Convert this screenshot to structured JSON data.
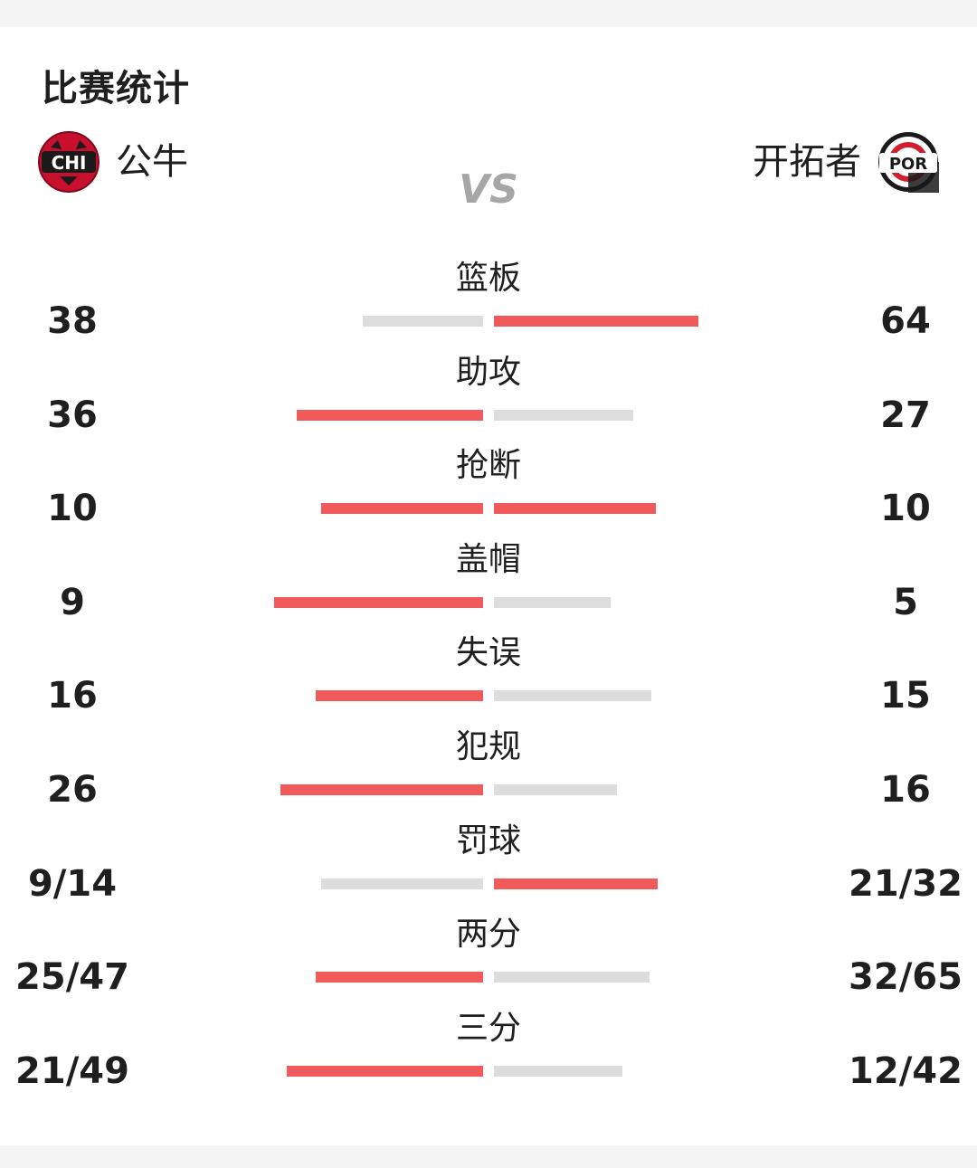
{
  "title": "比赛统计",
  "vs": "VS",
  "home_team": {
    "name": "公牛",
    "abbr": "CHI"
  },
  "away_team": {
    "name": "开拓者",
    "abbr": "POR"
  },
  "colors": {
    "leader": "#f05a5a",
    "trailer": "#dddddd",
    "home_logo": "#c8102e",
    "away_logo": "#d21f2d"
  },
  "stats": [
    {
      "label": "篮板",
      "home": "38",
      "away": "64",
      "home_bar": 0.59,
      "away_bar": 1.0,
      "leader": "away"
    },
    {
      "label": "助攻",
      "home": "36",
      "away": "27",
      "home_bar": 0.91,
      "away_bar": 0.68,
      "leader": "home"
    },
    {
      "label": "抢断",
      "home": "10",
      "away": "10",
      "home_bar": 0.79,
      "away_bar": 0.79,
      "leader": "both"
    },
    {
      "label": "盖帽",
      "home": "9",
      "away": "5",
      "home_bar": 1.02,
      "away_bar": 0.57,
      "leader": "home"
    },
    {
      "label": "失误",
      "home": "16",
      "away": "15",
      "home_bar": 0.82,
      "away_bar": 0.77,
      "leader": "home"
    },
    {
      "label": "犯规",
      "home": "26",
      "away": "16",
      "home_bar": 0.99,
      "away_bar": 0.6,
      "leader": "home"
    },
    {
      "label": "罚球",
      "home": "9/14",
      "away": "21/32",
      "home_bar": 0.79,
      "away_bar": 0.8,
      "leader": "away"
    },
    {
      "label": "两分",
      "home": "25/47",
      "away": "32/65",
      "home_bar": 0.82,
      "away_bar": 0.76,
      "leader": "home"
    },
    {
      "label": "三分",
      "home": "21/49",
      "away": "12/42",
      "home_bar": 0.96,
      "away_bar": 0.63,
      "leader": "home"
    }
  ]
}
